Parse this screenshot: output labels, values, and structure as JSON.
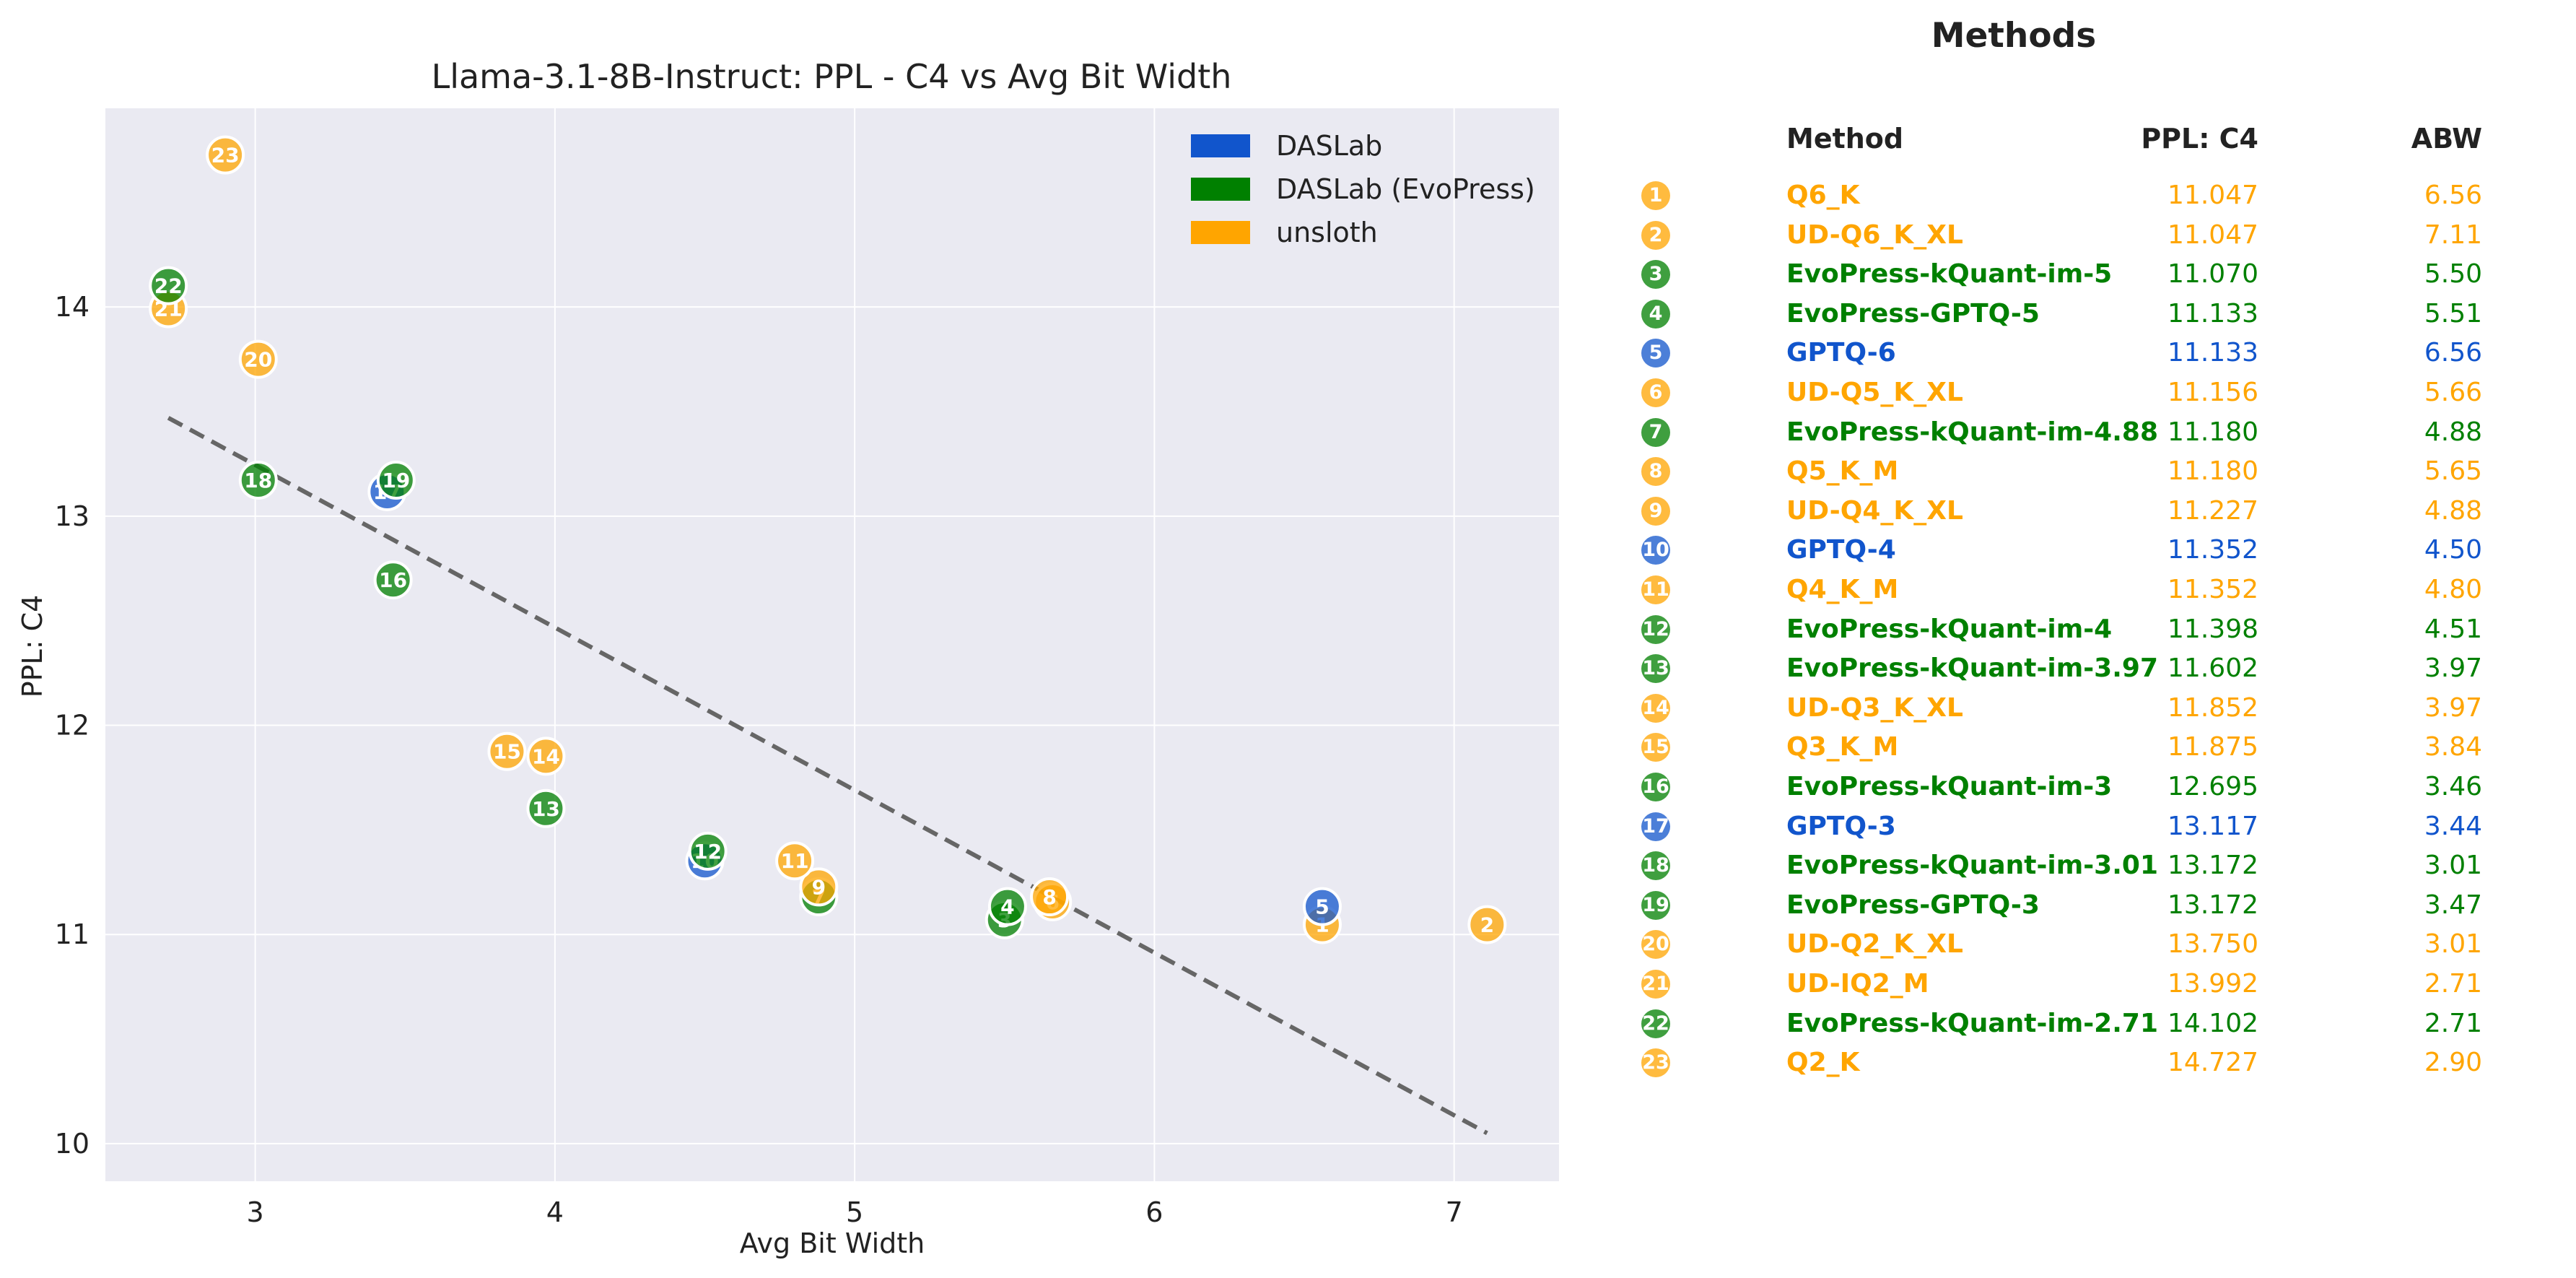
{
  "colors": {
    "DASLab": "#1155cc",
    "DASLab (EvoPress)": "#008000",
    "unsloth": "#ffa500",
    "plot_bg": "#eaeaf2",
    "trend": "#666666"
  },
  "chart_data": {
    "type": "scatter",
    "title": "Llama-3.1-8B-Instruct: PPL - C4 vs Avg Bit Width",
    "xlabel": "Avg Bit Width",
    "ylabel": "PPL: C4",
    "xlim": [
      2.5,
      7.35
    ],
    "ylim": [
      9.82,
      14.95
    ],
    "x_ticks": [
      "3",
      "4",
      "5",
      "6",
      "7"
    ],
    "y_ticks": [
      "10",
      "11",
      "12",
      "13",
      "14"
    ],
    "grid": true,
    "legend": {
      "position": "top-right",
      "entries": [
        "DASLab",
        "DASLab (EvoPress)",
        "unsloth"
      ]
    },
    "trendline": {
      "style": "dashed",
      "x": [
        2.71,
        7.11
      ],
      "y": [
        13.47,
        10.05
      ]
    },
    "points": [
      {
        "id": "1",
        "group": "unsloth",
        "x": 6.56,
        "y": 11.047
      },
      {
        "id": "2",
        "group": "unsloth",
        "x": 7.11,
        "y": 11.047
      },
      {
        "id": "3",
        "group": "DASLab (EvoPress)",
        "x": 5.5,
        "y": 11.07
      },
      {
        "id": "4",
        "group": "DASLab (EvoPress)",
        "x": 5.51,
        "y": 11.133
      },
      {
        "id": "5",
        "group": "DASLab",
        "x": 6.56,
        "y": 11.133
      },
      {
        "id": "6",
        "group": "unsloth",
        "x": 5.66,
        "y": 11.156
      },
      {
        "id": "7",
        "group": "DASLab (EvoPress)",
        "x": 4.88,
        "y": 11.18
      },
      {
        "id": "8",
        "group": "unsloth",
        "x": 5.65,
        "y": 11.18
      },
      {
        "id": "9",
        "group": "unsloth",
        "x": 4.88,
        "y": 11.227
      },
      {
        "id": "10",
        "group": "DASLab",
        "x": 4.5,
        "y": 11.352
      },
      {
        "id": "11",
        "group": "unsloth",
        "x": 4.8,
        "y": 11.352
      },
      {
        "id": "12",
        "group": "DASLab (EvoPress)",
        "x": 4.51,
        "y": 11.398
      },
      {
        "id": "13",
        "group": "DASLab (EvoPress)",
        "x": 3.97,
        "y": 11.602
      },
      {
        "id": "14",
        "group": "unsloth",
        "x": 3.97,
        "y": 11.852
      },
      {
        "id": "15",
        "group": "unsloth",
        "x": 3.84,
        "y": 11.875
      },
      {
        "id": "16",
        "group": "DASLab (EvoPress)",
        "x": 3.46,
        "y": 12.695
      },
      {
        "id": "17",
        "group": "DASLab",
        "x": 3.44,
        "y": 13.117
      },
      {
        "id": "18",
        "group": "DASLab (EvoPress)",
        "x": 3.01,
        "y": 13.172
      },
      {
        "id": "19",
        "group": "DASLab (EvoPress)",
        "x": 3.47,
        "y": 13.172
      },
      {
        "id": "20",
        "group": "unsloth",
        "x": 3.01,
        "y": 13.75
      },
      {
        "id": "21",
        "group": "unsloth",
        "x": 2.71,
        "y": 13.992
      },
      {
        "id": "22",
        "group": "DASLab (EvoPress)",
        "x": 2.71,
        "y": 14.102
      },
      {
        "id": "23",
        "group": "unsloth",
        "x": 2.9,
        "y": 14.727
      }
    ]
  },
  "methods": {
    "title": "Methods",
    "headers": {
      "method": "Method",
      "ppl": "PPL: C4",
      "abw": "ABW"
    },
    "rows": [
      {
        "n": "1",
        "name": "Q6_K",
        "group": "unsloth",
        "ppl": "11.047",
        "abw": "6.56"
      },
      {
        "n": "2",
        "name": "UD-Q6_K_XL",
        "group": "unsloth",
        "ppl": "11.047",
        "abw": "7.11"
      },
      {
        "n": "3",
        "name": "EvoPress-kQuant-im-5",
        "group": "DASLab (EvoPress)",
        "ppl": "11.070",
        "abw": "5.50"
      },
      {
        "n": "4",
        "name": "EvoPress-GPTQ-5",
        "group": "DASLab (EvoPress)",
        "ppl": "11.133",
        "abw": "5.51"
      },
      {
        "n": "5",
        "name": "GPTQ-6",
        "group": "DASLab",
        "ppl": "11.133",
        "abw": "6.56"
      },
      {
        "n": "6",
        "name": "UD-Q5_K_XL",
        "group": "unsloth",
        "ppl": "11.156",
        "abw": "5.66"
      },
      {
        "n": "7",
        "name": "EvoPress-kQuant-im-4.88",
        "group": "DASLab (EvoPress)",
        "ppl": "11.180",
        "abw": "4.88"
      },
      {
        "n": "8",
        "name": "Q5_K_M",
        "group": "unsloth",
        "ppl": "11.180",
        "abw": "5.65"
      },
      {
        "n": "9",
        "name": "UD-Q4_K_XL",
        "group": "unsloth",
        "ppl": "11.227",
        "abw": "4.88"
      },
      {
        "n": "10",
        "name": "GPTQ-4",
        "group": "DASLab",
        "ppl": "11.352",
        "abw": "4.50"
      },
      {
        "n": "11",
        "name": "Q4_K_M",
        "group": "unsloth",
        "ppl": "11.352",
        "abw": "4.80"
      },
      {
        "n": "12",
        "name": "EvoPress-kQuant-im-4",
        "group": "DASLab (EvoPress)",
        "ppl": "11.398",
        "abw": "4.51"
      },
      {
        "n": "13",
        "name": "EvoPress-kQuant-im-3.97",
        "group": "DASLab (EvoPress)",
        "ppl": "11.602",
        "abw": "3.97"
      },
      {
        "n": "14",
        "name": "UD-Q3_K_XL",
        "group": "unsloth",
        "ppl": "11.852",
        "abw": "3.97"
      },
      {
        "n": "15",
        "name": "Q3_K_M",
        "group": "unsloth",
        "ppl": "11.875",
        "abw": "3.84"
      },
      {
        "n": "16",
        "name": "EvoPress-kQuant-im-3",
        "group": "DASLab (EvoPress)",
        "ppl": "12.695",
        "abw": "3.46"
      },
      {
        "n": "17",
        "name": "GPTQ-3",
        "group": "DASLab",
        "ppl": "13.117",
        "abw": "3.44"
      },
      {
        "n": "18",
        "name": "EvoPress-kQuant-im-3.01",
        "group": "DASLab (EvoPress)",
        "ppl": "13.172",
        "abw": "3.01"
      },
      {
        "n": "19",
        "name": "EvoPress-GPTQ-3",
        "group": "DASLab (EvoPress)",
        "ppl": "13.172",
        "abw": "3.47"
      },
      {
        "n": "20",
        "name": "UD-Q2_K_XL",
        "group": "unsloth",
        "ppl": "13.750",
        "abw": "3.01"
      },
      {
        "n": "21",
        "name": "UD-IQ2_M",
        "group": "unsloth",
        "ppl": "13.992",
        "abw": "2.71"
      },
      {
        "n": "22",
        "name": "EvoPress-kQuant-im-2.71",
        "group": "DASLab (EvoPress)",
        "ppl": "14.102",
        "abw": "2.71"
      },
      {
        "n": "23",
        "name": "Q2_K",
        "group": "unsloth",
        "ppl": "14.727",
        "abw": "2.90"
      }
    ]
  }
}
